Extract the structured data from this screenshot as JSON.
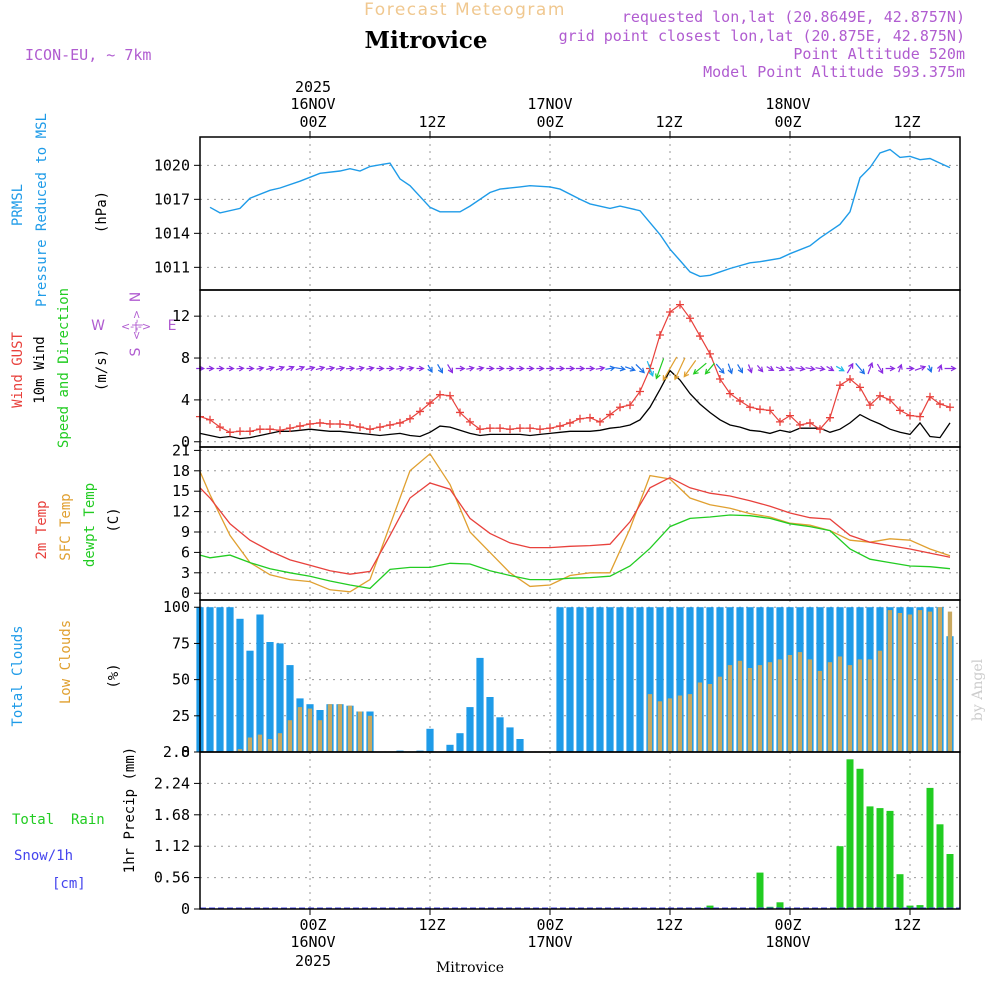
{
  "header": {
    "product_title": "Forecast Meteogram",
    "location": "Mitrovice",
    "model": "ICON-EU, ~ 7km",
    "requested": "requested lon,lat (20.8649E, 42.8757N)",
    "grid_point": "grid point closest lon,lat (20.875E, 42.875N)",
    "point_altitude": "Point Altitude 520m",
    "model_altitude": "Model Point Altitude 593.375m",
    "bottom_location": "Mitrovice",
    "credit": "by Angel"
  },
  "time_axis": {
    "year": "2025",
    "hours_label_top": [
      "00Z",
      "12Z",
      "00Z",
      "12Z",
      "00Z",
      "12Z"
    ],
    "hours_label_bottom": [
      "00Z",
      "12Z",
      "00Z",
      "12Z",
      "00Z",
      "12Z"
    ],
    "date_labels": [
      "16NOV",
      "17NOV",
      "18NOV"
    ],
    "start_hour": -11,
    "end_hour": 65
  },
  "panel_labels": {
    "pressure": [
      "PRMSL",
      "Pressure Reduced to MSL",
      "(hPa)"
    ],
    "wind": [
      "Wind GUST",
      "10m Wind",
      "Speed and Direction",
      "(m/s)"
    ],
    "compass": [
      "N",
      "E",
      "S",
      "W"
    ],
    "temp": [
      "2m Temp",
      "SFC Temp",
      "dewpt Temp",
      "(C)"
    ],
    "clouds": [
      "Total Clouds",
      "Low Clouds",
      "(%)"
    ],
    "precip": [
      "Total  Rain",
      "Snow/1h",
      "[cm]",
      "1hr Precip (mm)"
    ]
  },
  "colors": {
    "pressure": "#1e9be8",
    "gust": "#e8413c",
    "wind": "#000000",
    "arrows": "#8a2be2",
    "temp2m": "#e8413c",
    "sfc": "#e0a030",
    "dewpt": "#22cc22",
    "total_clouds": "#1e9be8",
    "low_clouds": "#c8a860",
    "rain": "#22cc22",
    "snow": "#4444ee",
    "title": "#f0c890",
    "info": "#b05cd0"
  },
  "chart_data": [
    {
      "type": "line",
      "title": "PRMSL Pressure Reduced to MSL",
      "ylabel": "(hPa)",
      "ylim": [
        1009,
        1022.5
      ],
      "yticks": [
        1011,
        1014,
        1017,
        1020
      ],
      "x_hours": [
        -10,
        -9,
        -7,
        -6,
        -4,
        -3,
        -1,
        1,
        3,
        4,
        5,
        6,
        8,
        9,
        10,
        12,
        13,
        15,
        16,
        18,
        19,
        21,
        22,
        24,
        25,
        27,
        28,
        30,
        31,
        33,
        35,
        36,
        37,
        38,
        39,
        40,
        41,
        42,
        44,
        45,
        47,
        48,
        50,
        51,
        53,
        54,
        55,
        56,
        57,
        58,
        59,
        60,
        61,
        62,
        63,
        64
      ],
      "series": [
        {
          "name": "PRMSL",
          "values": [
            1016.3,
            1015.8,
            1016.2,
            1017.1,
            1017.8,
            1018.0,
            1018.6,
            1019.3,
            1019.5,
            1019.7,
            1019.5,
            1019.9,
            1020.2,
            1018.8,
            1018.2,
            1016.3,
            1015.9,
            1015.9,
            1016.4,
            1017.6,
            1017.9,
            1018.1,
            1018.2,
            1018.1,
            1017.9,
            1017.0,
            1016.6,
            1016.2,
            1016.4,
            1016.0,
            1013.9,
            1012.6,
            1011.6,
            1010.6,
            1010.2,
            1010.3,
            1010.6,
            1010.9,
            1011.4,
            1011.5,
            1011.8,
            1012.2,
            1012.9,
            1013.6,
            1014.8,
            1015.9,
            1018.9,
            1019.8,
            1021.1,
            1021.4,
            1020.7,
            1020.8,
            1020.5,
            1020.6,
            1020.2,
            1019.8
          ]
        }
      ]
    },
    {
      "type": "line",
      "title": "Wind GUST / 10m Wind Speed and Direction",
      "ylabel": "(m/s)",
      "ylim": [
        -0.5,
        14.5
      ],
      "yticks": [
        0,
        4,
        8,
        12
      ],
      "x_hours": [
        -11,
        -10,
        -9,
        -8,
        -7,
        -6,
        -5,
        -4,
        -3,
        -2,
        -1,
        0,
        1,
        2,
        3,
        4,
        5,
        6,
        7,
        8,
        9,
        10,
        11,
        12,
        13,
        14,
        15,
        16,
        17,
        18,
        19,
        20,
        21,
        22,
        23,
        24,
        25,
        26,
        27,
        28,
        29,
        30,
        31,
        32,
        33,
        34,
        35,
        36,
        37,
        38,
        39,
        40,
        41,
        42,
        43,
        44,
        45,
        46,
        47,
        48,
        49,
        50,
        51,
        52,
        53,
        54,
        55,
        56,
        57,
        58,
        59,
        60,
        61,
        62,
        63,
        64
      ],
      "series": [
        {
          "name": "Wind GUST",
          "values": [
            2.4,
            2.1,
            1.4,
            0.9,
            1.0,
            1.0,
            1.2,
            1.2,
            1.1,
            1.3,
            1.5,
            1.7,
            1.8,
            1.7,
            1.7,
            1.6,
            1.4,
            1.2,
            1.4,
            1.6,
            1.8,
            2.2,
            2.9,
            3.7,
            4.5,
            4.4,
            2.8,
            1.9,
            1.2,
            1.3,
            1.3,
            1.2,
            1.3,
            1.3,
            1.2,
            1.3,
            1.5,
            1.8,
            2.2,
            2.3,
            1.9,
            2.6,
            3.3,
            3.5,
            4.8,
            7.0,
            10.2,
            12.4,
            13.1,
            11.8,
            10.1,
            8.4,
            6.0,
            4.6,
            3.9,
            3.3,
            3.1,
            3.0,
            1.9,
            2.5,
            1.6,
            1.8,
            1.2,
            2.3,
            5.4,
            6.0,
            5.2,
            3.5,
            4.4,
            4.0,
            3.0,
            2.5,
            2.4,
            4.3,
            3.6,
            3.3
          ]
        },
        {
          "name": "10m Wind",
          "values": [
            0.8,
            0.6,
            0.4,
            0.5,
            0.3,
            0.4,
            0.6,
            0.8,
            1.0,
            1.0,
            1.1,
            1.2,
            1.1,
            1.0,
            1.0,
            0.9,
            0.8,
            0.7,
            0.6,
            0.7,
            0.8,
            0.6,
            0.5,
            0.9,
            1.5,
            1.4,
            1.1,
            0.8,
            0.6,
            0.7,
            0.7,
            0.7,
            0.7,
            0.6,
            0.7,
            0.8,
            0.9,
            1.0,
            1.0,
            1.0,
            1.1,
            1.3,
            1.4,
            1.6,
            2.1,
            3.3,
            5.0,
            6.8,
            5.9,
            4.6,
            3.6,
            2.8,
            2.1,
            1.6,
            1.4,
            1.1,
            1.0,
            0.8,
            1.1,
            0.9,
            1.3,
            1.3,
            1.3,
            0.9,
            1.2,
            1.8,
            2.6,
            2.1,
            1.7,
            1.2,
            0.9,
            0.7,
            1.8,
            0.5,
            0.4,
            1.8
          ]
        }
      ],
      "arrow_row_value": 7,
      "arrow_hours": [
        -11,
        -10,
        -9,
        -8,
        -7,
        -6,
        -5,
        -4,
        -3,
        -2,
        -1,
        0,
        1,
        2,
        3,
        4,
        5,
        6,
        7,
        8,
        9,
        10,
        11,
        12,
        13,
        14,
        15,
        16,
        17,
        18,
        19,
        20,
        21,
        22,
        23,
        24,
        25,
        26,
        27,
        28,
        29,
        30,
        31,
        32,
        33,
        34,
        35,
        36,
        37,
        38,
        39,
        40,
        41,
        42,
        43,
        44,
        45,
        46,
        47,
        48,
        49,
        50,
        51,
        52,
        53,
        54,
        55,
        56,
        57,
        58,
        59,
        60,
        61,
        62,
        63,
        64
      ],
      "arrow_dir_deg": [
        270,
        270,
        270,
        270,
        265,
        270,
        260,
        255,
        250,
        245,
        250,
        255,
        255,
        260,
        260,
        265,
        260,
        260,
        270,
        270,
        260,
        260,
        270,
        330,
        330,
        330,
        270,
        260,
        260,
        270,
        270,
        270,
        270,
        270,
        270,
        270,
        270,
        270,
        270,
        270,
        260,
        260,
        280,
        290,
        315,
        340,
        20,
        30,
        25,
        35,
        50,
        40,
        320,
        340,
        330,
        340,
        320,
        300,
        290,
        290,
        280,
        280,
        280,
        300,
        300,
        210,
        320,
        200,
        330,
        270,
        200,
        270,
        250,
        340,
        200,
        270
      ],
      "arrow_colors": [
        "#8a2be2",
        "#8a2be2",
        "#8a2be2",
        "#8a2be2",
        "#8a2be2",
        "#8a2be2",
        "#8a2be2",
        "#8a2be2",
        "#8a2be2",
        "#8a2be2",
        "#8a2be2",
        "#8a2be2",
        "#8a2be2",
        "#8a2be2",
        "#8a2be2",
        "#8a2be2",
        "#8a2be2",
        "#8a2be2",
        "#8a2be2",
        "#8a2be2",
        "#8a2be2",
        "#8a2be2",
        "#8a2be2",
        "#1a6fe8",
        "#1a6fe8",
        "#8a2be2",
        "#8a2be2",
        "#8a2be2",
        "#8a2be2",
        "#8a2be2",
        "#8a2be2",
        "#8a2be2",
        "#8a2be2",
        "#8a2be2",
        "#8a2be2",
        "#8a2be2",
        "#8a2be2",
        "#8a2be2",
        "#8a2be2",
        "#8a2be2",
        "#8a2be2",
        "#1a6fe8",
        "#1a6fe8",
        "#1a6fe8",
        "#1a6fe8",
        "#1ebbe8",
        "#22cc22",
        "#e0a030",
        "#e0a030",
        "#e0a030",
        "#22cc22",
        "#22cc22",
        "#1a6fe8",
        "#1a6fe8",
        "#1a6fe8",
        "#8a2be2",
        "#8a2be2",
        "#8a2be2",
        "#8a2be2",
        "#8a2be2",
        "#8a2be2",
        "#8a2be2",
        "#8a2be2",
        "#8a2be2",
        "#1ebbe8",
        "#8a2be2",
        "#1a6fe8",
        "#8a2be2",
        "#8a2be2",
        "#8a2be2",
        "#8a2be2",
        "#8a2be2",
        "#8a2be2",
        "#1a6fe8",
        "#8a2be2",
        "#8a2be2"
      ]
    },
    {
      "type": "line",
      "title": "2m Temp / SFC Temp / dewpt Temp",
      "ylabel": "(C)",
      "ylim": [
        -1,
        21.5
      ],
      "yticks": [
        0,
        3,
        6,
        9,
        12,
        15,
        18,
        21
      ],
      "x_hours": [
        -11,
        -10,
        -8,
        -6,
        -4,
        -2,
        0,
        2,
        4,
        6,
        8,
        10,
        12,
        14,
        16,
        18,
        20,
        22,
        24,
        26,
        28,
        30,
        32,
        34,
        36,
        38,
        40,
        42,
        44,
        46,
        48,
        50,
        52,
        54,
        56,
        58,
        60,
        62,
        64
      ],
      "series": [
        {
          "name": "2m Temp",
          "values": [
            15.5,
            14.0,
            10.2,
            7.8,
            6.2,
            4.9,
            4.1,
            3.3,
            2.8,
            3.2,
            8.5,
            14.0,
            16.2,
            15.3,
            11.0,
            8.8,
            7.4,
            6.7,
            6.7,
            6.9,
            7.0,
            7.2,
            10.5,
            15.5,
            17.0,
            15.5,
            14.7,
            14.3,
            13.6,
            12.8,
            11.8,
            11.1,
            10.9,
            8.5,
            7.5,
            7.0,
            6.5,
            5.9,
            5.3
          ]
        },
        {
          "name": "SFC Temp",
          "values": [
            17.9,
            14.5,
            8.5,
            4.5,
            2.7,
            2.0,
            1.7,
            0.5,
            0.2,
            2.0,
            10.0,
            18.0,
            20.5,
            16.0,
            9.0,
            6.0,
            3.0,
            1.0,
            1.2,
            2.6,
            3.0,
            3.0,
            9.5,
            17.3,
            16.8,
            14.0,
            13.0,
            12.5,
            11.7,
            11.2,
            10.3,
            10.0,
            9.2,
            7.8,
            7.5,
            8.0,
            7.8,
            6.5,
            5.5
          ]
        },
        {
          "name": "dewpt Temp",
          "values": [
            5.6,
            5.2,
            5.6,
            4.5,
            3.6,
            3.0,
            2.5,
            1.8,
            1.2,
            0.7,
            3.5,
            3.8,
            3.8,
            4.4,
            4.3,
            3.3,
            2.6,
            2.0,
            2.0,
            2.2,
            2.3,
            2.5,
            4.0,
            6.6,
            9.8,
            11.0,
            11.2,
            11.5,
            11.4,
            11.0,
            10.2,
            9.8,
            9.2,
            6.5,
            5.0,
            4.5,
            4.0,
            3.9,
            3.6
          ]
        }
      ]
    },
    {
      "type": "bar",
      "title": "Total Clouds / Low Clouds",
      "ylabel": "(%)",
      "ylim": [
        0,
        105
      ],
      "yticks": [
        0,
        25,
        50,
        75,
        100
      ],
      "x_hours": [
        -11,
        -10,
        -9,
        -8,
        -7,
        -6,
        -5,
        -4,
        -3,
        -2,
        -1,
        0,
        1,
        2,
        3,
        4,
        5,
        6,
        7,
        8,
        9,
        10,
        11,
        12,
        13,
        14,
        15,
        16,
        17,
        18,
        19,
        20,
        21,
        22,
        23,
        24,
        25,
        26,
        27,
        28,
        29,
        30,
        31,
        32,
        33,
        34,
        35,
        36,
        37,
        38,
        39,
        40,
        41,
        42,
        43,
        44,
        45,
        46,
        47,
        48,
        49,
        50,
        51,
        52,
        53,
        54,
        55,
        56,
        57,
        58,
        59,
        60,
        61,
        62,
        63,
        64
      ],
      "series": [
        {
          "name": "Total Clouds",
          "values": [
            100,
            100,
            100,
            100,
            92,
            70,
            95,
            76,
            75,
            60,
            37,
            33,
            29,
            33,
            33,
            32,
            28,
            28,
            0,
            0,
            1,
            0,
            1,
            16,
            0,
            5,
            13,
            31,
            65,
            38,
            24,
            17,
            9,
            0,
            0,
            0,
            100,
            100,
            100,
            100,
            100,
            100,
            100,
            100,
            100,
            100,
            100,
            100,
            100,
            100,
            100,
            100,
            100,
            100,
            100,
            100,
            100,
            100,
            100,
            100,
            100,
            100,
            100,
            100,
            100,
            100,
            100,
            100,
            100,
            100,
            100,
            100,
            100,
            100,
            100,
            80
          ]
        },
        {
          "name": "Low Clouds",
          "values": [
            0,
            0,
            0,
            0,
            2,
            10,
            12,
            9,
            13,
            22,
            31,
            30,
            22,
            33,
            33,
            32,
            28,
            25,
            0,
            0,
            0,
            0,
            0,
            0,
            0,
            0,
            0,
            0,
            0,
            0,
            0,
            0,
            0,
            0,
            0,
            0,
            0,
            0,
            0,
            0,
            0,
            0,
            0,
            0,
            0,
            40,
            35,
            37,
            39,
            40,
            48,
            47,
            52,
            60,
            63,
            58,
            60,
            62,
            64,
            67,
            69,
            64,
            56,
            62,
            66,
            60,
            64,
            64,
            70,
            98,
            96,
            95,
            98,
            97,
            100,
            97
          ]
        }
      ]
    },
    {
      "type": "bar",
      "title": "1hr Precip (mm)",
      "ylabel": "1hr Precip (mm)",
      "ylim": [
        0,
        2.8
      ],
      "yticks": [
        0,
        0.56,
        1.12,
        1.68,
        2.24,
        2.8
      ],
      "x_hours": [
        39,
        40,
        45,
        46,
        47,
        53,
        54,
        55,
        56,
        57,
        58,
        59,
        60,
        61,
        62,
        63,
        64
      ],
      "series": [
        {
          "name": "Total Rain",
          "values": [
            0.02,
            0.06,
            0.65,
            0.04,
            0.12,
            1.12,
            2.67,
            2.5,
            1.83,
            1.8,
            1.75,
            0.62,
            0.06,
            0.07,
            2.16,
            1.51,
            0.98
          ]
        },
        {
          "name": "Snow/1h",
          "values": [
            0,
            0,
            0,
            0,
            0,
            0,
            0,
            0,
            0,
            0,
            0,
            0,
            0,
            0,
            0,
            0,
            0
          ]
        }
      ]
    }
  ]
}
